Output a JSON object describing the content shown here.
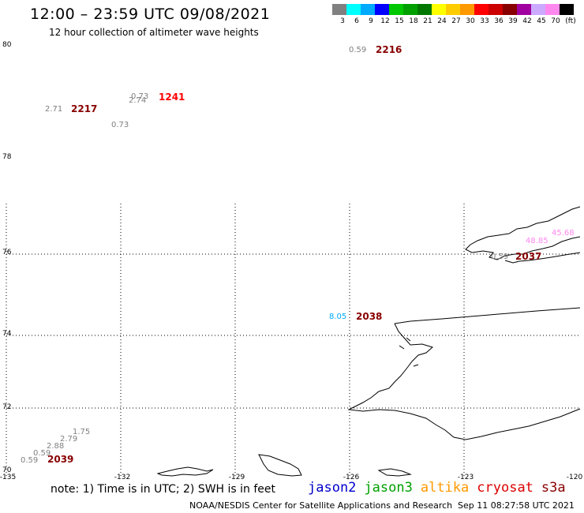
{
  "header": {
    "title": "12:00 – 23:59 UTC 09/08/2021",
    "subtitle": "12 hour collection of altimeter wave heights"
  },
  "colorbar": {
    "unit": "(ft)",
    "stops": [
      {
        "label": "3",
        "color": "#808080"
      },
      {
        "label": "6",
        "color": "#00ffff"
      },
      {
        "label": "9",
        "color": "#00aaff"
      },
      {
        "label": "12",
        "color": "#0000ff"
      },
      {
        "label": "15",
        "color": "#00c800"
      },
      {
        "label": "18",
        "color": "#00a000"
      },
      {
        "label": "21",
        "color": "#007800"
      },
      {
        "label": "24",
        "color": "#ffff00"
      },
      {
        "label": "27",
        "color": "#ffcc00"
      },
      {
        "label": "30",
        "color": "#ff9900"
      },
      {
        "label": "33",
        "color": "#ff0000"
      },
      {
        "label": "36",
        "color": "#cc0000"
      },
      {
        "label": "39",
        "color": "#880000"
      },
      {
        "label": "42",
        "color": "#a000a0"
      },
      {
        "label": "45",
        "color": "#ccaaff"
      },
      {
        "label": "70",
        "color": "#ff88ee"
      },
      {
        "label": "",
        "color": "#000000"
      }
    ]
  },
  "axes": {
    "lat_labels": [
      "80",
      "78",
      "76",
      "74",
      "72",
      "70"
    ],
    "lon_labels": [
      "-135",
      "-132",
      "-129",
      "-126",
      "-123",
      "-120"
    ]
  },
  "observations": [
    {
      "id": "obs-1",
      "text": "0.59",
      "color": "#808080"
    },
    {
      "id": "obs-2",
      "text": "2216",
      "color": "#880000",
      "kind": "time"
    },
    {
      "id": "obs-3",
      "text": "0.73",
      "color": "#808080"
    },
    {
      "id": "obs-4",
      "text": "2.74",
      "color": "#808080"
    },
    {
      "id": "obs-5",
      "text": "1241",
      "color": "#ff0000",
      "kind": "time"
    },
    {
      "id": "obs-6",
      "text": "2.71",
      "color": "#808080"
    },
    {
      "id": "obs-7",
      "text": "2217",
      "color": "#880000",
      "kind": "time"
    },
    {
      "id": "obs-8",
      "text": "0.73",
      "color": "#808080"
    },
    {
      "id": "obs-9",
      "text": "45.68",
      "color": "#ff88ee"
    },
    {
      "id": "obs-10",
      "text": "48.85",
      "color": "#ff88ee"
    },
    {
      "id": "obs-11",
      "text": "0.59",
      "color": "#808080"
    },
    {
      "id": "obs-12",
      "text": "2037",
      "color": "#880000",
      "kind": "time"
    },
    {
      "id": "obs-13",
      "text": "8.05",
      "color": "#00aaff"
    },
    {
      "id": "obs-14",
      "text": "2038",
      "color": "#880000",
      "kind": "time"
    },
    {
      "id": "obs-15",
      "text": "1.75",
      "color": "#808080"
    },
    {
      "id": "obs-16",
      "text": "2.79",
      "color": "#808080"
    },
    {
      "id": "obs-17",
      "text": "2.88",
      "color": "#808080"
    },
    {
      "id": "obs-18",
      "text": "0.59",
      "color": "#808080"
    },
    {
      "id": "obs-19",
      "text": "0.59",
      "color": "#808080"
    },
    {
      "id": "obs-20",
      "text": "2039",
      "color": "#880000",
      "kind": "time"
    }
  ],
  "footer": {
    "note": "note: 1) Time is in UTC; 2) SWH is in feet",
    "satellites": [
      {
        "name": "jason2",
        "color": "#0000cc"
      },
      {
        "name": "jason3",
        "color": "#00a000"
      },
      {
        "name": "altika",
        "color": "#ff9900"
      },
      {
        "name": "cryosat",
        "color": "#dd0000"
      },
      {
        "name": "s3a",
        "color": "#880000"
      }
    ],
    "credit": "NOAA/NESDIS Center for Satellite Applications and Research",
    "timestamp": "Sep 11 08:27:58 UTC 2021"
  }
}
